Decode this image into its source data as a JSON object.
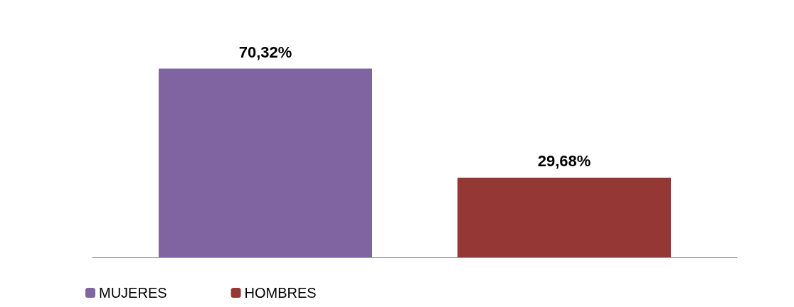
{
  "chart_data": {
    "type": "bar",
    "categories": [
      null
    ],
    "series": [
      {
        "name": "MUJERES",
        "color": "#8064a2",
        "values": [
          70.32
        ],
        "value_labels": [
          "70,32%"
        ]
      },
      {
        "name": "HOMBRES",
        "color": "#953735",
        "values": [
          29.68
        ],
        "value_labels": [
          "29,68%"
        ]
      }
    ],
    "legend": "bottom left"
  }
}
